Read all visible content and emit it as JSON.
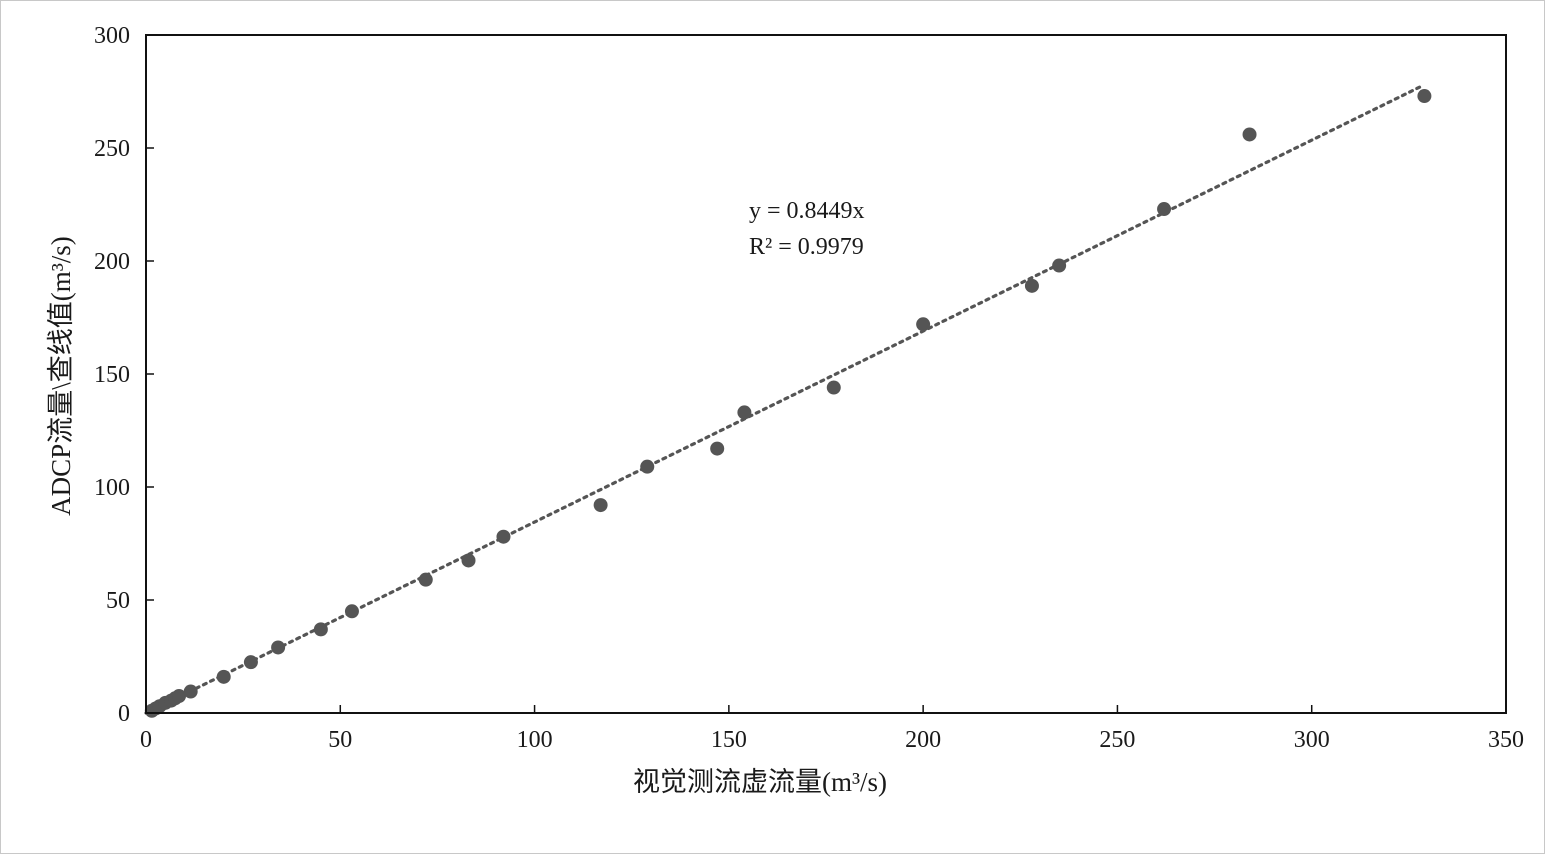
{
  "chart_data": {
    "type": "scatter",
    "xlabel": "视觉测流虚流量(m³/s)",
    "ylabel": "ADCP流量\\查线值(m³/s)",
    "xlim": [
      0,
      350
    ],
    "ylim": [
      0,
      300
    ],
    "x_ticks": [
      0,
      50,
      100,
      150,
      200,
      250,
      300,
      350
    ],
    "y_ticks": [
      0,
      50,
      100,
      150,
      200,
      250,
      300
    ],
    "grid": false,
    "legend": "none",
    "marker_color": "#555555",
    "trendline": {
      "style": "dotted",
      "slope": 0.8449,
      "x_range": [
        0,
        328
      ],
      "equation_label": "y = 0.8449x",
      "r2_label": "R² = 0.9979"
    },
    "series": [
      {
        "points": [
          [
            1.5,
            1.0
          ],
          [
            2.5,
            2.0
          ],
          [
            3.5,
            3.0
          ],
          [
            5.0,
            4.5
          ],
          [
            6.5,
            5.5
          ],
          [
            7.5,
            6.5
          ],
          [
            8.5,
            7.5
          ],
          [
            11.5,
            9.5
          ],
          [
            20,
            16
          ],
          [
            27,
            22.5
          ],
          [
            34,
            29
          ],
          [
            45,
            37
          ],
          [
            53,
            45
          ],
          [
            72,
            59
          ],
          [
            83,
            67.5
          ],
          [
            92,
            78
          ],
          [
            117,
            92
          ],
          [
            129,
            109
          ],
          [
            147,
            117
          ],
          [
            154,
            133
          ],
          [
            177,
            144
          ],
          [
            200,
            172
          ],
          [
            228,
            189
          ],
          [
            235,
            198
          ],
          [
            262,
            223
          ],
          [
            284,
            256
          ],
          [
            329,
            273
          ]
        ]
      }
    ]
  }
}
